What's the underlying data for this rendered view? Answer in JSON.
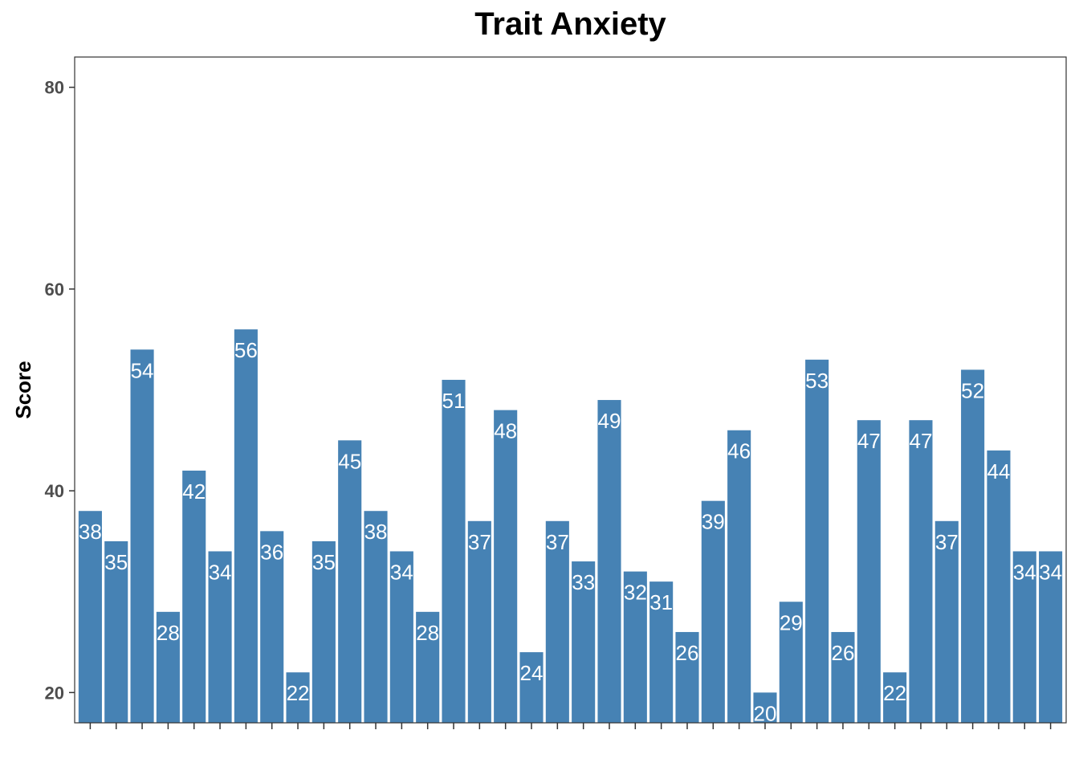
{
  "chart_data": {
    "type": "bar",
    "title": "Trait Anxiety",
    "xlabel": "",
    "ylabel": "Score",
    "ylim": [
      17,
      83
    ],
    "yticks": [
      20,
      40,
      60,
      80
    ],
    "bar_color": "#4682b4",
    "label_color": "#ffffff",
    "grid": false,
    "values": [
      38,
      35,
      54,
      28,
      42,
      34,
      56,
      36,
      22,
      35,
      45,
      38,
      34,
      28,
      51,
      37,
      48,
      24,
      37,
      33,
      49,
      32,
      31,
      26,
      39,
      46,
      20,
      29,
      53,
      26,
      47,
      22,
      47,
      37,
      52,
      44,
      34,
      34
    ]
  }
}
